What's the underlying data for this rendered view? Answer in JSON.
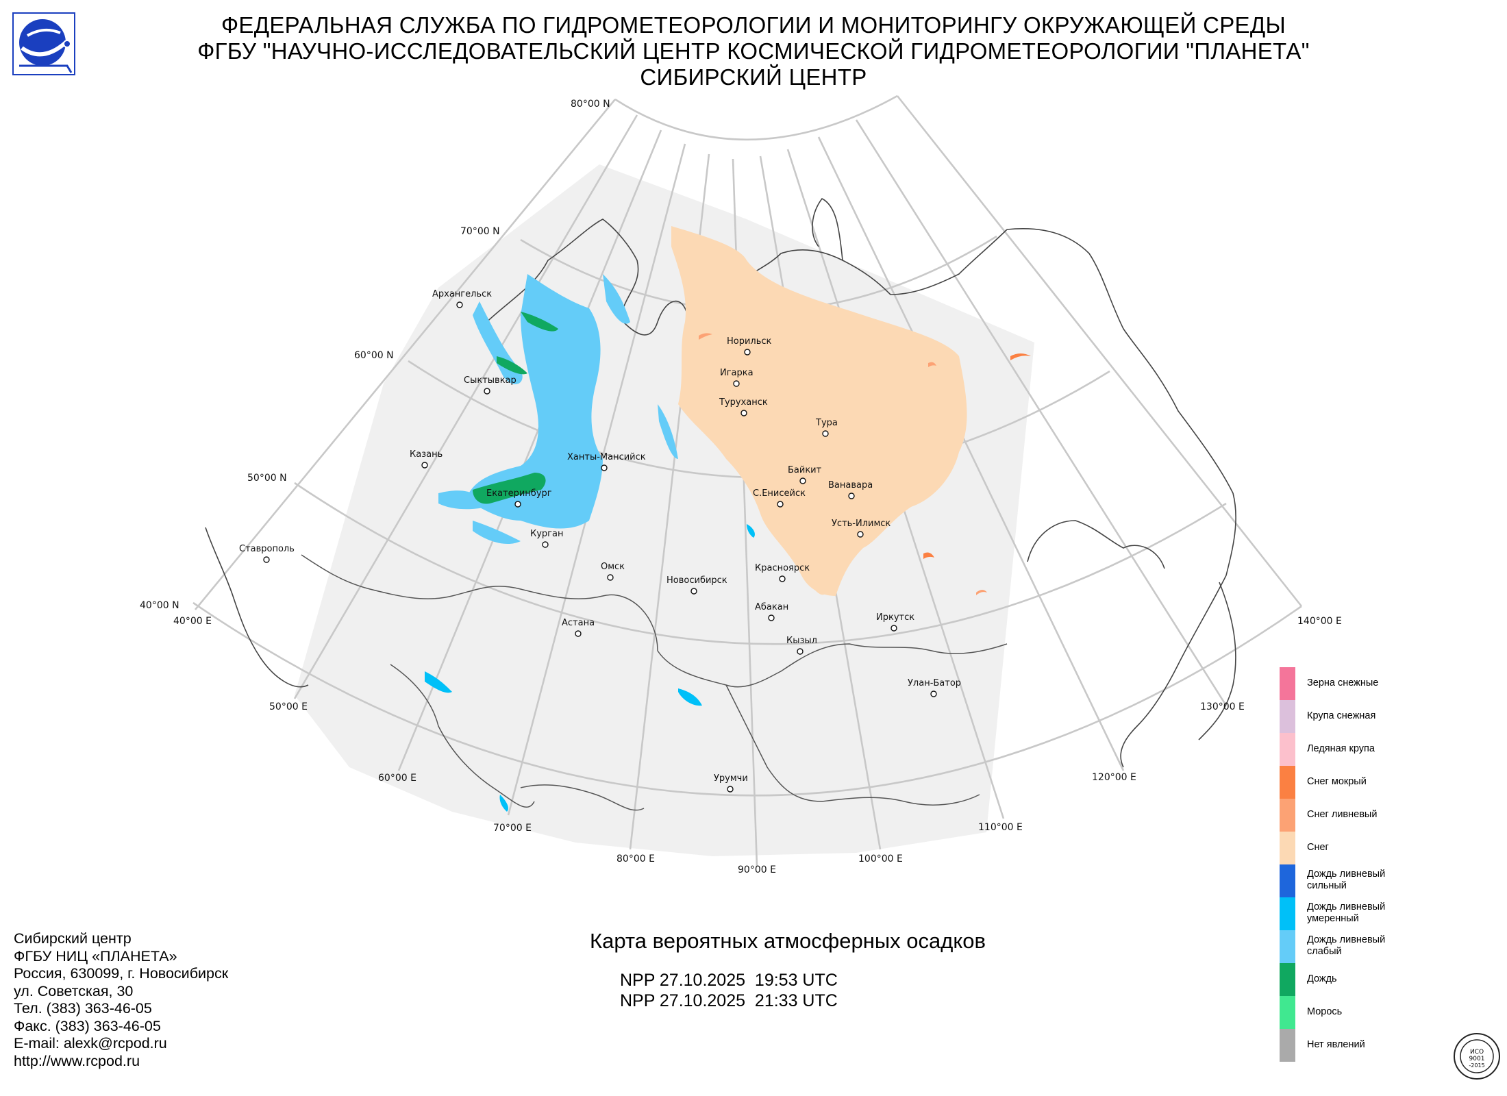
{
  "header": {
    "line1": "ФЕДЕРАЛЬНАЯ СЛУЖБА ПО ГИДРОМЕТЕОРОЛОГИИ И МОНИТОРИНГУ ОКРУЖАЮЩЕЙ СРЕДЫ",
    "line2": "ФГБУ \"НАУЧНО-ИССЛЕДОВАТЕЛЬСКИЙ ЦЕНТР КОСМИЧЕСКОЙ ГИДРОМЕТЕОРОЛОГИИ \"ПЛАНЕТА\"",
    "line3": "СИБИРСКИЙ ЦЕНТР"
  },
  "logo": {
    "icon": "planeta-logo-icon",
    "color": "#1a3fbf"
  },
  "map": {
    "latitude_labels": [
      "80°00 N",
      "70°00 N",
      "60°00 N",
      "50°00 N",
      "40°00 N"
    ],
    "longitude_labels": [
      "40°00 E",
      "50°00 E",
      "60°00 E",
      "70°00 E",
      "80°00 E",
      "90°00 E",
      "100°00 E",
      "110°00 E",
      "120°00 E",
      "130°00 E",
      "140°00 E"
    ],
    "cities": [
      "Архангельск",
      "Сыктывкар",
      "Казань",
      "Ставрополь",
      "Екатеринбург",
      "Курган",
      "Ханты-Мансийск",
      "Омск",
      "Астана",
      "Новосибирск",
      "Норильск",
      "Игарка",
      "Туруханск",
      "Тура",
      "Байкит",
      "С.Енисейск",
      "Ванавара",
      "Усть-Илимск",
      "Красноярск",
      "Абакан",
      "Кызыл",
      "Иркутск",
      "Улан-Батор",
      "Урумчи"
    ],
    "colors": {
      "coverage": "#f0f0f0",
      "grid": "#c8c8c8",
      "coast": "#444444"
    }
  },
  "legend": [
    {
      "label": "Зерна снежные",
      "color": "#f4759a"
    },
    {
      "label": "Крупа снежная",
      "color": "#dcc0dc"
    },
    {
      "label": "Ледяная крупа",
      "color": "#fcc0cc"
    },
    {
      "label": "Снег мокрый",
      "color": "#fb8042"
    },
    {
      "label": "Снег ливневый",
      "color": "#fca274"
    },
    {
      "label": "Снег",
      "color": "#fcd9b4"
    },
    {
      "label": "Дождь ливневый\nсильный",
      "color": "#1e66dc"
    },
    {
      "label": "Дождь ливневый\nумеренный",
      "color": "#00c0f8"
    },
    {
      "label": "Дождь ливневый\nслабый",
      "color": "#64ccf8"
    },
    {
      "label": "Дождь",
      "color": "#10a860"
    },
    {
      "label": "Морось",
      "color": "#40e890"
    },
    {
      "label": "Нет явлений",
      "color": "#aaaaaa"
    }
  ],
  "title": "Карта вероятных атмосферных осадков",
  "passes": [
    "NPP 27.10.2025  19:53 UTC",
    "NPP 27.10.2025  21:33 UTC"
  ],
  "contact": [
    "Сибирский центр",
    "ФГБУ НИЦ «ПЛАНЕТА»",
    "Россия, 630099, г. Новосибирск",
    "ул. Советская, 30",
    "Тел. (383) 363-46-05",
    "Факс. (383) 363-46-05",
    "E-mail: alexk@rcpod.ru",
    "http://www.rcpod.ru"
  ],
  "certificate": {
    "icon": "iso-certificate-icon",
    "text1": "ИСО",
    "text2": "9001",
    "text3": "-2015"
  }
}
